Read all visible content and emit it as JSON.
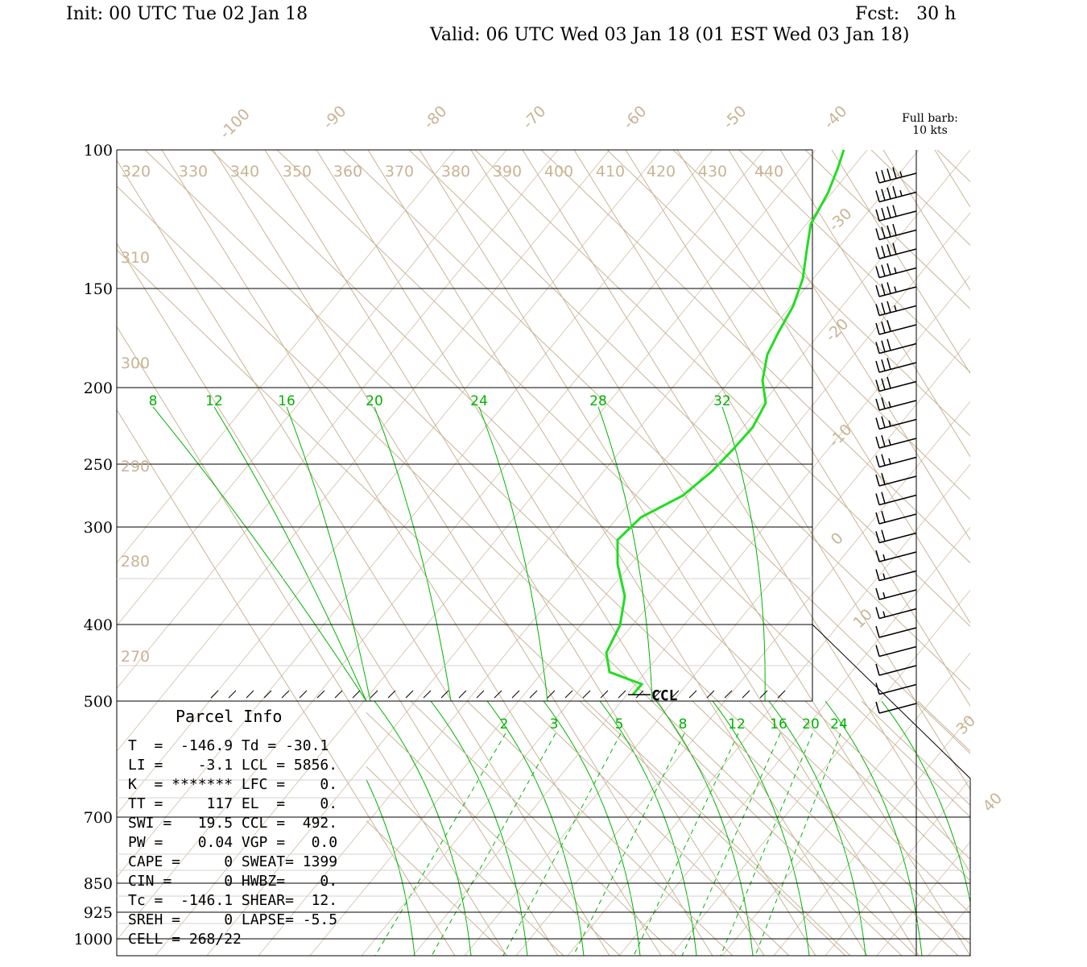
{
  "header": {
    "init": "Init: 00 UTC Tue 02 Jan 18",
    "fcst": "Fcst:   30 h",
    "valid": "Valid: 06 UTC Wed 03 Jan 18 (01 EST Wed 03 Jan 18)"
  },
  "barb_note": [
    "Full barb:",
    "10 kts"
  ],
  "parcel_info": {
    "title": "Parcel Info",
    "lines": [
      "T  =  -146.9 Td = -30.1",
      "LI =    -3.1 LCL = 5856.",
      "K  = ******* LFC =    0.",
      "TT =     117 EL  =    0.",
      "SWI =   19.5 CCL =  492.",
      "PW =    0.04 VGP =   0.0",
      "CAPE =     0 SWEAT= 1399",
      "CIN =      0 HWBZ=    0.",
      "Tc =  -146.1 SHEAR=  12.",
      "SREH =     0 LAPSE= -5.5",
      "CELL = 268/22"
    ]
  },
  "ccl_label": "CCL",
  "chart_data": {
    "type": "line",
    "title": "",
    "pressure_levels": [
      "100",
      "150",
      "200",
      "250",
      "300",
      "400",
      "500",
      "700",
      "850",
      "925",
      "1000"
    ],
    "isotherm_labels": [
      "-100",
      "-90",
      "-80",
      "-70",
      "-60",
      "-50",
      "-40",
      "-30",
      "-20",
      "-10",
      "0",
      "10",
      "30",
      "40"
    ],
    "theta_labels": [
      "320",
      "330",
      "340",
      "350",
      "360",
      "370",
      "380",
      "390",
      "400",
      "410",
      "420",
      "430",
      "440",
      "310",
      "300",
      "290",
      "280",
      "270"
    ],
    "moist_adiabat_labels": [
      "8",
      "12",
      "16",
      "20",
      "24",
      "28",
      "32"
    ],
    "mixing_ratio_labels": [
      "2",
      "3",
      "5",
      "8",
      "12",
      "16",
      "20",
      "24"
    ],
    "series": [
      {
        "color": "#22dd22",
        "points": [
          {
            "p": 100,
            "t": -41
          },
          {
            "p": 110,
            "t": -42
          },
          {
            "p": 125,
            "t": -44
          },
          {
            "p": 135,
            "t": -39
          },
          {
            "p": 150,
            "t": -36
          },
          {
            "p": 170,
            "t": -35
          },
          {
            "p": 190,
            "t": -32
          },
          {
            "p": 210,
            "t": -27
          },
          {
            "p": 230,
            "t": -22
          },
          {
            "p": 255,
            "t": -16
          },
          {
            "p": 275,
            "t": -11
          },
          {
            "p": 295,
            "t": -8
          },
          {
            "p": 320,
            "t": -14
          },
          {
            "p": 350,
            "t": -17
          },
          {
            "p": 385,
            "t": -21
          },
          {
            "p": 420,
            "t": -28
          },
          {
            "p": 460,
            "t": -31
          },
          {
            "p": 480,
            "t": -27
          },
          {
            "p": 490,
            "t": -28
          }
        ]
      }
    ],
    "wind_barbs_kts": [
      45,
      45,
      40,
      40,
      40,
      35,
      35,
      35,
      30,
      30,
      30,
      30,
      25,
      25,
      25,
      25,
      20,
      20,
      20,
      20,
      15,
      15,
      15,
      15,
      10,
      10,
      10,
      10,
      10
    ],
    "colors": {
      "isopleth": "#c9b496",
      "moist": "#00b300",
      "profile": "#22dd22"
    },
    "grid": true
  }
}
